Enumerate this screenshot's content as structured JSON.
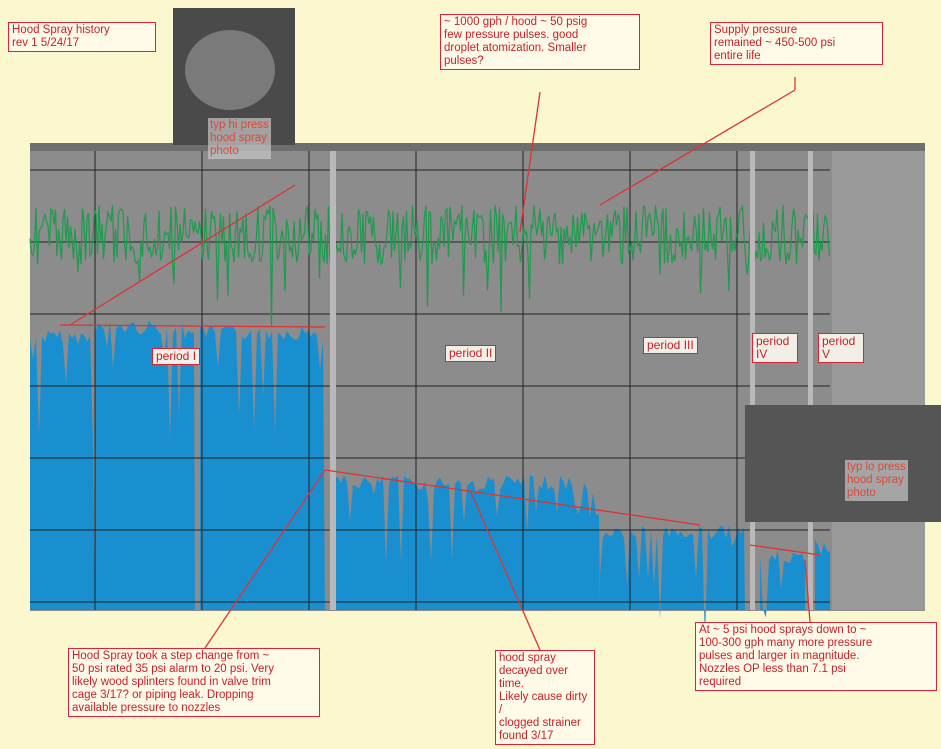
{
  "header": {
    "title": "Hood Spray history\nrev 1      5/24/17"
  },
  "photos": [
    {
      "label": "typ hi press\nhood spray\nphoto"
    },
    {
      "label": "typ lo press\nhood spray\nphoto"
    }
  ],
  "notes": [
    {
      "text": "~ 1000 gph / hood ~ 50 psig\nfew pressure pulses. good\ndroplet atomization. Smaller\npulses?"
    },
    {
      "text": "Supply pressure\nremained ~ 450-500 psi\nentire life"
    },
    {
      "text": "Hood Spray took a step change from ~\n50 psi rated 35 psi alarm to 20 psi. Very\nlikely wood splinters found in valve trim\ncage 3/17? or piping leak. Dropping\navailable pressure to nozzles"
    },
    {
      "text": "hood spray\ndecayed over time.\nLikely cause dirty /\nclogged strainer\nfound 3/17"
    },
    {
      "text": "At ~ 5 psi hood sprays down to ~\n100-300 gph  many more pressure\npulses and larger in magnitude.\nNozzles OP less than 7.1 psi\nrequired"
    }
  ],
  "periods": [
    {
      "label": "period I"
    },
    {
      "label": "period II"
    },
    {
      "label": "period III"
    },
    {
      "label": "period IV"
    },
    {
      "label": "period V"
    }
  ]
}
